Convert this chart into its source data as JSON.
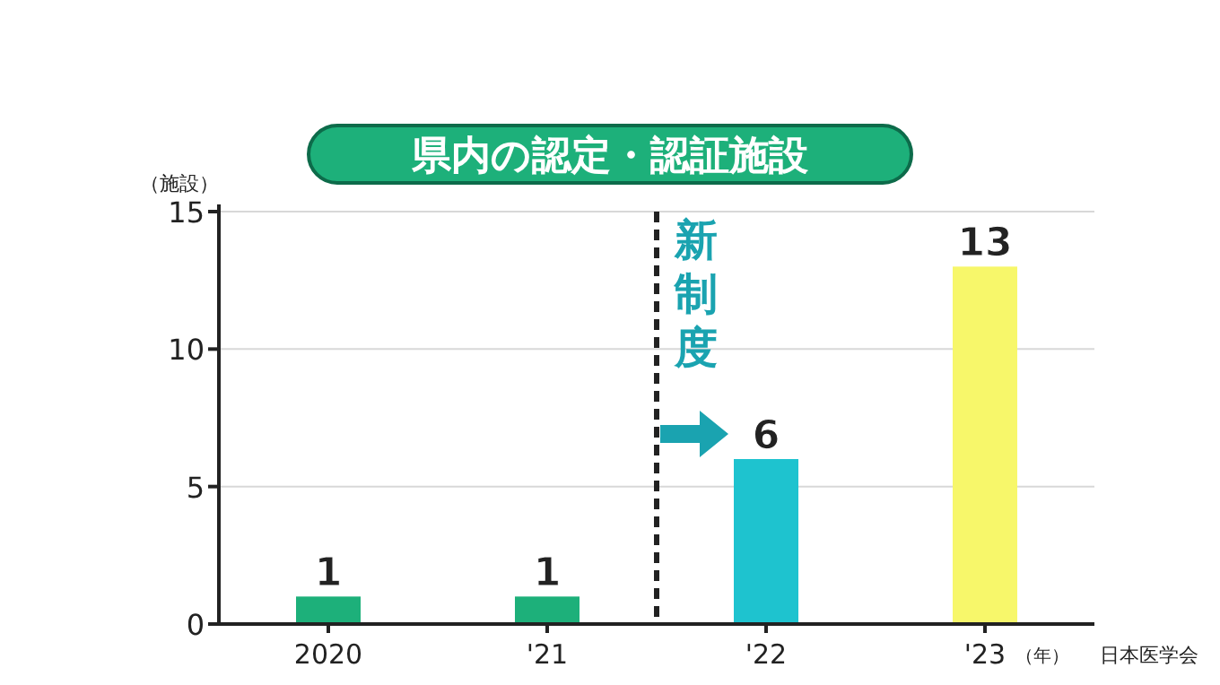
{
  "chart_data": {
    "type": "bar",
    "title": "県内の認定・認証施設",
    "ylabel": "（施設）",
    "xlabel": "（年）",
    "categories": [
      "2020",
      "'21",
      "'22",
      "'23"
    ],
    "values": [
      1,
      1,
      6,
      13
    ],
    "colors": [
      "#1db07a",
      "#1db07a",
      "#1ec3cf",
      "#f7f76a"
    ],
    "ylim": [
      0,
      15
    ],
    "yticks": [
      0,
      5,
      10,
      15
    ],
    "grid": "y",
    "data_labels": true,
    "annotations": [
      "新制度",
      "日本医学会"
    ]
  }
}
